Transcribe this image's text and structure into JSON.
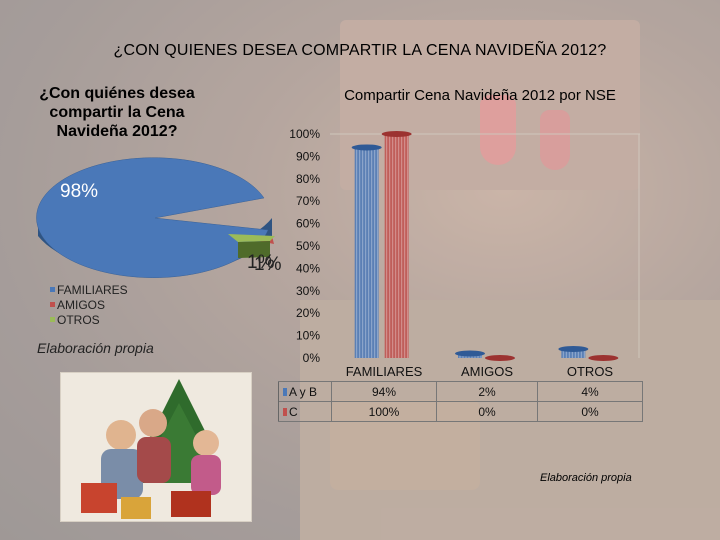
{
  "slide": {
    "title": "¿CON QUIENES DESEA COMPARTIR LA CENA NAVIDEÑA 2012?"
  },
  "chart_data": [
    {
      "type": "pie",
      "title": "¿Con quiénes desea compartir la Cena Navideña 2012?",
      "categories": [
        "FAMILIARES",
        "AMIGOS",
        "OTROS"
      ],
      "values": [
        98,
        1,
        1
      ],
      "data_labels": [
        "98%",
        "1%",
        "1%"
      ],
      "colors": [
        "#4a78b8",
        "#c0504d",
        "#9bbb59"
      ],
      "legend_position": "left-bottom",
      "source": "Elaboración propia"
    },
    {
      "type": "bar",
      "title": "Compartir Cena Navideña 2012 por NSE",
      "categories": [
        "FAMILIARES",
        "AMIGOS",
        "OTROS"
      ],
      "series": [
        {
          "name": "A y B",
          "values": [
            94,
            2,
            4
          ],
          "labels": [
            "94%",
            "2%",
            "4%"
          ],
          "color": "#4a78b8"
        },
        {
          "name": "C",
          "values": [
            100,
            0,
            0
          ],
          "labels": [
            "100%",
            "0%",
            "0%"
          ],
          "color": "#c0504d"
        }
      ],
      "yticks": [
        "0%",
        "10%",
        "20%",
        "30%",
        "40%",
        "50%",
        "60%",
        "70%",
        "80%",
        "90%",
        "100%"
      ],
      "ylim": [
        0,
        100
      ],
      "legend_position": "data-table",
      "grid": false,
      "source": "Elaboración propia"
    }
  ]
}
